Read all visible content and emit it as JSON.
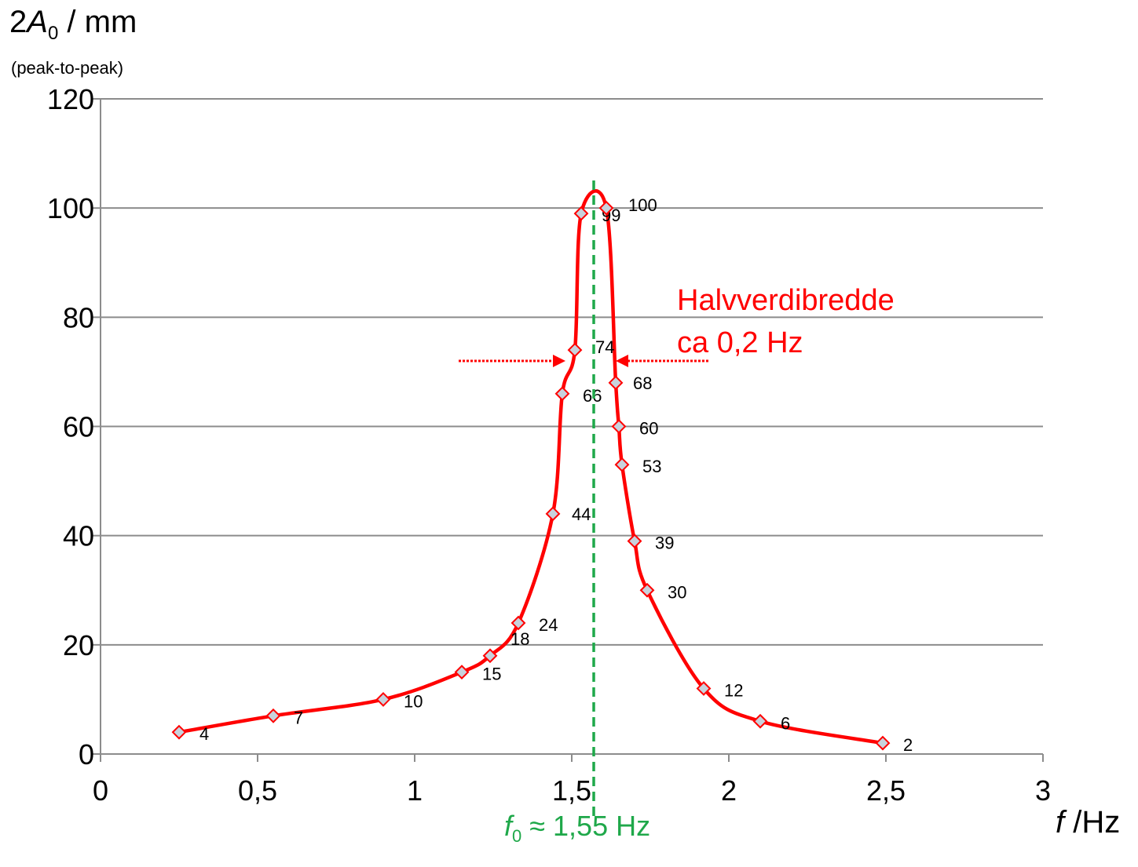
{
  "chart_data": {
    "type": "line",
    "ylabel_prefix": "2",
    "ylabel_symbol": "A",
    "ylabel_subscript": "0",
    "ylabel_suffix": " / mm",
    "ylabel_note": "(peak-to-peak)",
    "xlabel_symbol": "f",
    "xlabel_suffix": " /Hz",
    "xlim": [
      0,
      3
    ],
    "ylim": [
      0,
      120
    ],
    "xticks": [
      0,
      0.5,
      1,
      1.5,
      2,
      2.5,
      3
    ],
    "xtick_labels": [
      "0",
      "0,5",
      "1",
      "1,5",
      "2",
      "2,5",
      "3"
    ],
    "yticks": [
      0,
      20,
      40,
      60,
      80,
      100,
      120
    ],
    "ytick_labels": [
      "0",
      "20",
      "40",
      "60",
      "80",
      "100",
      "120"
    ],
    "grid": "horizontal",
    "series": [
      {
        "color": "#ff0000",
        "marker": "diamond",
        "marker_fill": "#c8d2dc",
        "x": [
          0.25,
          0.55,
          0.9,
          1.15,
          1.24,
          1.33,
          1.44,
          1.47,
          1.51,
          1.53,
          1.61,
          1.64,
          1.65,
          1.66,
          1.7,
          1.74,
          1.92,
          2.1,
          2.49
        ],
        "y": [
          4,
          7,
          10,
          15,
          18,
          24,
          44,
          66,
          74,
          99,
          100,
          68,
          60,
          53,
          39,
          30,
          12,
          6,
          2
        ],
        "labels": [
          "4",
          "7",
          "10",
          "15",
          "18",
          "24",
          "44",
          "66",
          "74",
          "99",
          "100",
          "68",
          "60",
          "53",
          "39",
          "30",
          "12",
          "6",
          "2"
        ]
      }
    ],
    "resonance_line": {
      "x": 1.57,
      "color": "#1fa84a"
    },
    "f0_label_symbol": "f",
    "f0_label_subscript": "0",
    "f0_label_value": " ≈ 1,55 Hz",
    "halfwidth": {
      "level": 72,
      "left_x": 1.48,
      "right_x": 1.64,
      "line1": "Halvverdibredde",
      "line2": "ca 0,2 Hz",
      "color": "#ff0000"
    }
  }
}
